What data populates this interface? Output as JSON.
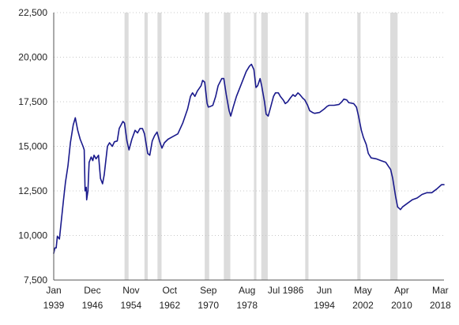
{
  "chart_data": {
    "type": "line",
    "title": "",
    "xlabel": "",
    "ylabel": "",
    "x_range": [
      "1939-01",
      "2018-12"
    ],
    "ylim": [
      7500,
      22500
    ],
    "y_ticks": [
      {
        "value": 7500,
        "label": "7,500"
      },
      {
        "value": 10000,
        "label": "10,000"
      },
      {
        "value": 12500,
        "label": "12,500"
      },
      {
        "value": 15000,
        "label": "15,000"
      },
      {
        "value": 17500,
        "label": "17,500"
      },
      {
        "value": 20000,
        "label": "20,000"
      },
      {
        "value": 22500,
        "label": "22,500"
      }
    ],
    "x_ticks": [
      {
        "date": "1939-01",
        "month": "Jan",
        "year": "1939"
      },
      {
        "date": "1946-12",
        "month": "Dec",
        "year": "1946"
      },
      {
        "date": "1954-11",
        "month": "Nov",
        "year": "1954"
      },
      {
        "date": "1962-10",
        "month": "Oct",
        "year": "1962"
      },
      {
        "date": "1970-09",
        "month": "Sep",
        "year": "1970"
      },
      {
        "date": "1978-08",
        "month": "Aug",
        "year": "1978"
      },
      {
        "date": "1986-07",
        "month": "Jul 1986",
        "year": ""
      },
      {
        "date": "1994-06",
        "month": "Jun",
        "year": "1994"
      },
      {
        "date": "2002-05",
        "month": "May",
        "year": "2002"
      },
      {
        "date": "2010-04",
        "month": "Apr",
        "year": "2010"
      },
      {
        "date": "2018-03",
        "month": "Mar",
        "year": "2018"
      }
    ],
    "grid": "horizontal dotted",
    "line_color": "#1a1a8c",
    "shade_color": "#dcdcdc",
    "shaded_periods": [
      [
        "1953-07",
        "1954-05"
      ],
      [
        "1957-08",
        "1958-04"
      ],
      [
        "1960-04",
        "1961-02"
      ],
      [
        "1969-12",
        "1970-11"
      ],
      [
        "1973-11",
        "1975-03"
      ],
      [
        "1980-01",
        "1980-07"
      ],
      [
        "1981-07",
        "1982-11"
      ],
      [
        "1990-07",
        "1991-03"
      ],
      [
        "2001-03",
        "2001-11"
      ],
      [
        "2007-12",
        "2009-06"
      ]
    ],
    "series": [
      {
        "points": [
          [
            "1939-01",
            9000
          ],
          [
            "1939-04",
            9300
          ],
          [
            "1939-07",
            9300
          ],
          [
            "1939-10",
            9950
          ],
          [
            "1940-03",
            9800
          ],
          [
            "1940-08",
            10900
          ],
          [
            "1941-01",
            12000
          ],
          [
            "1941-06",
            13000
          ],
          [
            "1941-12",
            13900
          ],
          [
            "1942-06",
            15200
          ],
          [
            "1943-01",
            16200
          ],
          [
            "1943-06",
            16600
          ],
          [
            "1943-12",
            15900
          ],
          [
            "1944-06",
            15400
          ],
          [
            "1945-01",
            15000
          ],
          [
            "1945-04",
            14800
          ],
          [
            "1945-06",
            12500
          ],
          [
            "1945-09",
            12700
          ],
          [
            "1945-10",
            12000
          ],
          [
            "1946-01",
            12500
          ],
          [
            "1946-04",
            14100
          ],
          [
            "1946-09",
            14400
          ],
          [
            "1947-01",
            14200
          ],
          [
            "1947-04",
            14500
          ],
          [
            "1947-09",
            14300
          ],
          [
            "1948-03",
            14500
          ],
          [
            "1948-08",
            13200
          ],
          [
            "1949-01",
            12900
          ],
          [
            "1949-05",
            13400
          ],
          [
            "1950-01",
            15000
          ],
          [
            "1950-06",
            15200
          ],
          [
            "1951-01",
            15000
          ],
          [
            "1951-06",
            15250
          ],
          [
            "1952-01",
            15300
          ],
          [
            "1952-06",
            16000
          ],
          [
            "1953-03",
            16400
          ],
          [
            "1953-07",
            16300
          ],
          [
            "1954-01",
            15300
          ],
          [
            "1954-06",
            14800
          ],
          [
            "1955-01",
            15400
          ],
          [
            "1955-09",
            15900
          ],
          [
            "1956-03",
            15750
          ],
          [
            "1956-09",
            16000
          ],
          [
            "1957-03",
            16000
          ],
          [
            "1957-08",
            15700
          ],
          [
            "1958-04",
            14600
          ],
          [
            "1958-09",
            14500
          ],
          [
            "1959-03",
            15300
          ],
          [
            "1959-09",
            15600
          ],
          [
            "1960-03",
            15800
          ],
          [
            "1960-09",
            15300
          ],
          [
            "1961-03",
            14900
          ],
          [
            "1961-09",
            15200
          ],
          [
            "1962-06",
            15400
          ],
          [
            "1963-06",
            15550
          ],
          [
            "1964-06",
            15700
          ],
          [
            "1965-06",
            16300
          ],
          [
            "1966-06",
            17100
          ],
          [
            "1967-01",
            17800
          ],
          [
            "1967-06",
            18000
          ],
          [
            "1967-12",
            17800
          ],
          [
            "1968-06",
            18100
          ],
          [
            "1969-03",
            18400
          ],
          [
            "1969-07",
            18700
          ],
          [
            "1969-12",
            18600
          ],
          [
            "1970-06",
            17400
          ],
          [
            "1970-09",
            17200
          ],
          [
            "1971-03",
            17250
          ],
          [
            "1971-08",
            17300
          ],
          [
            "1972-03",
            17800
          ],
          [
            "1972-09",
            18400
          ],
          [
            "1973-06",
            18800
          ],
          [
            "1973-11",
            18800
          ],
          [
            "1974-05",
            17900
          ],
          [
            "1974-12",
            17000
          ],
          [
            "1975-04",
            16700
          ],
          [
            "1975-10",
            17200
          ],
          [
            "1976-06",
            17800
          ],
          [
            "1977-06",
            18500
          ],
          [
            "1978-06",
            19200
          ],
          [
            "1979-02",
            19500
          ],
          [
            "1979-07",
            19600
          ],
          [
            "1980-01",
            19300
          ],
          [
            "1980-06",
            18300
          ],
          [
            "1980-10",
            18400
          ],
          [
            "1981-04",
            18800
          ],
          [
            "1981-08",
            18400
          ],
          [
            "1982-03",
            17500
          ],
          [
            "1982-07",
            16800
          ],
          [
            "1982-12",
            16700
          ],
          [
            "1983-06",
            17200
          ],
          [
            "1984-01",
            17800
          ],
          [
            "1984-06",
            18000
          ],
          [
            "1985-01",
            18000
          ],
          [
            "1985-06",
            17800
          ],
          [
            "1986-01",
            17600
          ],
          [
            "1986-06",
            17400
          ],
          [
            "1986-12",
            17500
          ],
          [
            "1987-06",
            17700
          ],
          [
            "1988-01",
            17900
          ],
          [
            "1988-06",
            17800
          ],
          [
            "1989-01",
            18000
          ],
          [
            "1989-06",
            17900
          ],
          [
            "1990-01",
            17700
          ],
          [
            "1990-06",
            17600
          ],
          [
            "1991-01",
            17300
          ],
          [
            "1991-06",
            17000
          ],
          [
            "1992-01",
            16900
          ],
          [
            "1992-06",
            16850
          ],
          [
            "1993-06",
            16900
          ],
          [
            "1994-06",
            17100
          ],
          [
            "1995-01",
            17250
          ],
          [
            "1995-06",
            17300
          ],
          [
            "1996-06",
            17300
          ],
          [
            "1997-06",
            17350
          ],
          [
            "1998-01",
            17500
          ],
          [
            "1998-06",
            17650
          ],
          [
            "1999-01",
            17600
          ],
          [
            "1999-06",
            17450
          ],
          [
            "2000-06",
            17400
          ],
          [
            "2001-01",
            17200
          ],
          [
            "2001-06",
            16700
          ],
          [
            "2002-01",
            15900
          ],
          [
            "2002-06",
            15500
          ],
          [
            "2003-01",
            15100
          ],
          [
            "2003-06",
            14600
          ],
          [
            "2004-01",
            14350
          ],
          [
            "2005-01",
            14300
          ],
          [
            "2006-01",
            14200
          ],
          [
            "2007-01",
            14100
          ],
          [
            "2008-01",
            13700
          ],
          [
            "2008-06",
            13200
          ],
          [
            "2009-01",
            12200
          ],
          [
            "2009-06",
            11600
          ],
          [
            "2010-01",
            11450
          ],
          [
            "2010-06",
            11600
          ],
          [
            "2011-06",
            11800
          ],
          [
            "2012-06",
            12000
          ],
          [
            "2013-06",
            12100
          ],
          [
            "2014-06",
            12300
          ],
          [
            "2015-06",
            12400
          ],
          [
            "2016-06",
            12400
          ],
          [
            "2017-06",
            12600
          ],
          [
            "2018-06",
            12850
          ],
          [
            "2018-12",
            12850
          ]
        ]
      }
    ]
  }
}
